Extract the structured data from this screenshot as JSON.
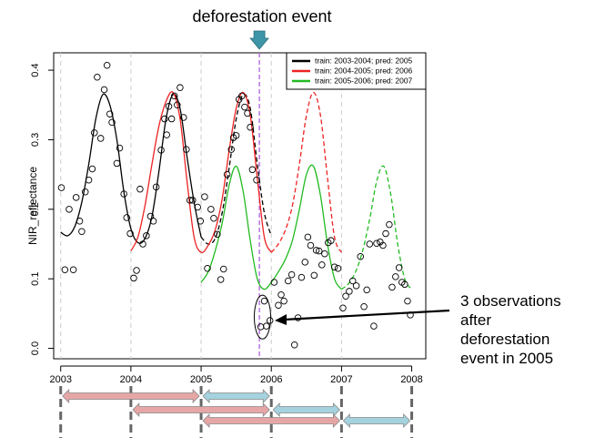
{
  "event_label": "deforestation event",
  "annotation_lines": [
    "3 observations",
    "after",
    "deforestation",
    "event in 2005"
  ],
  "chart_data": {
    "type": "line",
    "title": "",
    "xlabel": "",
    "ylabel": "NIR_reflectance",
    "xlim": [
      2002.9,
      2008.2
    ],
    "ylim": [
      -0.015,
      0.425
    ],
    "x_ticks": [
      2003,
      2004,
      2005,
      2006,
      2007,
      2008
    ],
    "x_tick_labels": [
      "2003",
      "2004",
      "2005",
      "2006",
      "2007",
      "2008"
    ],
    "y_ticks": [
      0.0,
      0.1,
      0.2,
      0.3,
      0.4
    ],
    "y_tick_labels": [
      "0.0",
      "0.1",
      "0.2",
      "0.3",
      "0.4"
    ],
    "year_gridlines": [
      2003,
      2004,
      2005,
      2006,
      2007
    ],
    "event_line_x": 2005.83,
    "colors": {
      "black": "#000000",
      "red": "#ee2222",
      "green": "#22bb22",
      "purple": "#b060e0",
      "pink": "#e7a6a6",
      "blue": "#a4d2de",
      "teal_arrow": "#3d95a8",
      "grid": "#cccccc"
    },
    "legend": {
      "position": "top-right",
      "entries": [
        {
          "label": "train: 2003-2004; pred: 2005",
          "color": "#000000"
        },
        {
          "label": "train: 2004-2005; pred: 2006",
          "color": "#ee2222"
        },
        {
          "label": "train: 2005-2006; pred: 2007",
          "color": "#22bb22"
        }
      ]
    },
    "series": [
      {
        "name": "train: 2003-2004; pred: 2005",
        "color": "#000000",
        "solid": [
          [
            2003.0,
            0.167
          ],
          [
            2003.1,
            0.162
          ],
          [
            2003.2,
            0.175
          ],
          [
            2003.3,
            0.21
          ],
          [
            2003.4,
            0.265
          ],
          [
            2003.5,
            0.33
          ],
          [
            2003.6,
            0.365
          ],
          [
            2003.7,
            0.35
          ],
          [
            2003.8,
            0.3
          ],
          [
            2003.9,
            0.225
          ],
          [
            2004.0,
            0.172
          ],
          [
            2004.1,
            0.152
          ],
          [
            2004.2,
            0.158
          ],
          [
            2004.3,
            0.19
          ],
          [
            2004.4,
            0.255
          ],
          [
            2004.5,
            0.33
          ],
          [
            2004.6,
            0.365
          ],
          [
            2004.7,
            0.345
          ],
          [
            2004.8,
            0.275
          ],
          [
            2004.9,
            0.21
          ],
          [
            2005.0,
            0.16
          ]
        ],
        "dashed": [
          [
            2005.0,
            0.16
          ],
          [
            2005.1,
            0.15
          ],
          [
            2005.2,
            0.158
          ],
          [
            2005.3,
            0.195
          ],
          [
            2005.4,
            0.26
          ],
          [
            2005.5,
            0.33
          ],
          [
            2005.6,
            0.365
          ],
          [
            2005.7,
            0.345
          ],
          [
            2005.8,
            0.265
          ],
          [
            2005.9,
            0.195
          ],
          [
            2006.0,
            0.162
          ]
        ]
      },
      {
        "name": "train: 2004-2005; pred: 2006",
        "color": "#ee2222",
        "solid": [
          [
            2004.0,
            0.14
          ],
          [
            2004.1,
            0.16
          ],
          [
            2004.2,
            0.205
          ],
          [
            2004.3,
            0.265
          ],
          [
            2004.4,
            0.32
          ],
          [
            2004.5,
            0.355
          ],
          [
            2004.6,
            0.368
          ],
          [
            2004.7,
            0.33
          ],
          [
            2004.8,
            0.24
          ],
          [
            2004.9,
            0.16
          ],
          [
            2005.0,
            0.138
          ],
          [
            2005.1,
            0.148
          ],
          [
            2005.2,
            0.17
          ],
          [
            2005.3,
            0.215
          ],
          [
            2005.4,
            0.285
          ],
          [
            2005.5,
            0.345
          ],
          [
            2005.6,
            0.368
          ],
          [
            2005.7,
            0.335
          ],
          [
            2005.8,
            0.245
          ],
          [
            2005.9,
            0.16
          ],
          [
            2006.0,
            0.138
          ]
        ],
        "dashed": [
          [
            2006.0,
            0.138
          ],
          [
            2006.1,
            0.15
          ],
          [
            2006.2,
            0.17
          ],
          [
            2006.3,
            0.205
          ],
          [
            2006.4,
            0.265
          ],
          [
            2006.5,
            0.335
          ],
          [
            2006.6,
            0.368
          ],
          [
            2006.7,
            0.335
          ],
          [
            2006.8,
            0.245
          ],
          [
            2006.9,
            0.16
          ],
          [
            2007.0,
            0.138
          ]
        ]
      },
      {
        "name": "train: 2005-2006; pred: 2007",
        "color": "#22bb22",
        "solid": [
          [
            2005.0,
            0.095
          ],
          [
            2005.1,
            0.11
          ],
          [
            2005.2,
            0.14
          ],
          [
            2005.3,
            0.18
          ],
          [
            2005.4,
            0.235
          ],
          [
            2005.5,
            0.262
          ],
          [
            2005.6,
            0.225
          ],
          [
            2005.7,
            0.155
          ],
          [
            2005.8,
            0.1
          ],
          [
            2005.9,
            0.085
          ],
          [
            2006.0,
            0.095
          ],
          [
            2006.1,
            0.11
          ],
          [
            2006.2,
            0.128
          ],
          [
            2006.3,
            0.155
          ],
          [
            2006.4,
            0.2
          ],
          [
            2006.5,
            0.25
          ],
          [
            2006.6,
            0.262
          ],
          [
            2006.7,
            0.22
          ],
          [
            2006.8,
            0.15
          ],
          [
            2006.9,
            0.1
          ],
          [
            2007.0,
            0.085
          ]
        ],
        "dashed": [
          [
            2007.0,
            0.085
          ],
          [
            2007.1,
            0.093
          ],
          [
            2007.2,
            0.11
          ],
          [
            2007.3,
            0.14
          ],
          [
            2007.4,
            0.185
          ],
          [
            2007.5,
            0.24
          ],
          [
            2007.6,
            0.262
          ],
          [
            2007.7,
            0.222
          ],
          [
            2007.8,
            0.15
          ],
          [
            2007.9,
            0.1
          ],
          [
            2008.0,
            0.085
          ]
        ]
      }
    ],
    "observations": [
      [
        2003.01,
        0.231
      ],
      [
        2003.06,
        0.113
      ],
      [
        2003.12,
        0.2
      ],
      [
        2003.18,
        0.113
      ],
      [
        2003.22,
        0.217
      ],
      [
        2003.27,
        0.183
      ],
      [
        2003.3,
        0.168
      ],
      [
        2003.35,
        0.225
      ],
      [
        2003.4,
        0.242
      ],
      [
        2003.45,
        0.258
      ],
      [
        2003.48,
        0.31
      ],
      [
        2003.52,
        0.39
      ],
      [
        2003.57,
        0.302
      ],
      [
        2003.62,
        0.372
      ],
      [
        2003.66,
        0.407
      ],
      [
        2003.7,
        0.337
      ],
      [
        2003.73,
        0.325
      ],
      [
        2003.8,
        0.266
      ],
      [
        2003.84,
        0.288
      ],
      [
        2003.9,
        0.222
      ],
      [
        2003.94,
        0.188
      ],
      [
        2003.99,
        0.165
      ],
      [
        2004.04,
        0.101
      ],
      [
        2004.08,
        0.112
      ],
      [
        2004.13,
        0.229
      ],
      [
        2004.17,
        0.15
      ],
      [
        2004.22,
        0.162
      ],
      [
        2004.28,
        0.19
      ],
      [
        2004.32,
        0.183
      ],
      [
        2004.36,
        0.232
      ],
      [
        2004.43,
        0.285
      ],
      [
        2004.48,
        0.33
      ],
      [
        2004.51,
        0.307
      ],
      [
        2004.54,
        0.348
      ],
      [
        2004.58,
        0.33
      ],
      [
        2004.62,
        0.363
      ],
      [
        2004.66,
        0.35
      ],
      [
        2004.7,
        0.375
      ],
      [
        2004.75,
        0.332
      ],
      [
        2004.79,
        0.286
      ],
      [
        2004.84,
        0.213
      ],
      [
        2004.88,
        0.213
      ],
      [
        2004.95,
        0.203
      ],
      [
        2004.99,
        0.183
      ],
      [
        2005.05,
        0.218
      ],
      [
        2005.09,
        0.115
      ],
      [
        2005.14,
        0.2
      ],
      [
        2005.18,
        0.187
      ],
      [
        2005.23,
        0.164
      ],
      [
        2005.28,
        0.099
      ],
      [
        2005.32,
        0.114
      ],
      [
        2005.37,
        0.25
      ],
      [
        2005.43,
        0.286
      ],
      [
        2005.46,
        0.303
      ],
      [
        2005.5,
        0.306
      ],
      [
        2005.54,
        0.358
      ],
      [
        2005.58,
        0.363
      ],
      [
        2005.62,
        0.347
      ],
      [
        2005.66,
        0.338
      ],
      [
        2005.7,
        0.318
      ],
      [
        2005.73,
        0.257
      ],
      [
        2005.79,
        0.242
      ],
      [
        2005.85,
        0.031
      ],
      [
        2005.9,
        0.068
      ],
      [
        2005.93,
        0.032
      ],
      [
        2005.98,
        0.04
      ],
      [
        2006.04,
        0.095
      ],
      [
        2006.1,
        0.062
      ],
      [
        2006.14,
        0.077
      ],
      [
        2006.18,
        0.068
      ],
      [
        2006.24,
        0.097
      ],
      [
        2006.29,
        0.106
      ],
      [
        2006.33,
        0.005
      ],
      [
        2006.38,
        0.044
      ],
      [
        2006.43,
        0.102
      ],
      [
        2006.48,
        0.124
      ],
      [
        2006.52,
        0.16
      ],
      [
        2006.56,
        0.148
      ],
      [
        2006.61,
        0.105
      ],
      [
        2006.64,
        0.141
      ],
      [
        2006.68,
        0.14
      ],
      [
        2006.72,
        0.12
      ],
      [
        2006.76,
        0.136
      ],
      [
        2006.81,
        0.152
      ],
      [
        2006.85,
        0.155
      ],
      [
        2006.9,
        0.117
      ],
      [
        2006.95,
        0.115
      ],
      [
        2007.02,
        0.058
      ],
      [
        2007.06,
        0.075
      ],
      [
        2007.11,
        0.082
      ],
      [
        2007.16,
        0.097
      ],
      [
        2007.21,
        0.09
      ],
      [
        2007.27,
        0.132
      ],
      [
        2007.32,
        0.06
      ],
      [
        2007.36,
        0.084
      ],
      [
        2007.4,
        0.15
      ],
      [
        2007.46,
        0.032
      ],
      [
        2007.5,
        0.151
      ],
      [
        2007.55,
        0.153
      ],
      [
        2007.59,
        0.148
      ],
      [
        2007.63,
        0.165
      ],
      [
        2007.68,
        0.178
      ],
      [
        2007.72,
        0.088
      ],
      [
        2007.77,
        0.103
      ],
      [
        2007.82,
        0.116
      ],
      [
        2007.86,
        0.095
      ],
      [
        2007.9,
        0.092
      ],
      [
        2007.94,
        0.068
      ],
      [
        2007.98,
        0.048
      ]
    ],
    "highlight": {
      "cx": 2005.9,
      "cy": 0.045,
      "note": "3 observations after deforestation event in 2005"
    },
    "timeline_rows": [
      {
        "train": [
          2003,
          2005
        ],
        "pred": [
          2005,
          2006
        ]
      },
      {
        "train": [
          2004,
          2006
        ],
        "pred": [
          2006,
          2007
        ]
      },
      {
        "train": [
          2005,
          2007
        ],
        "pred": [
          2007,
          2008
        ]
      }
    ]
  }
}
